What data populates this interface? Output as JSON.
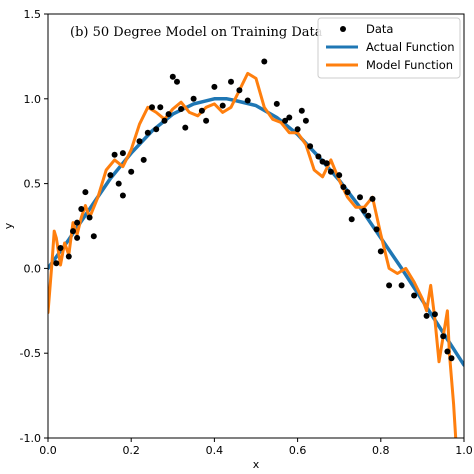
{
  "chart_data": {
    "type": "line",
    "title": "(b) 50 Degree Model on Training Data",
    "xlabel": "x",
    "ylabel": "y",
    "xlim": [
      0.0,
      1.0
    ],
    "ylim": [
      -1.0,
      1.5
    ],
    "x_ticks": [
      "0.0",
      "0.2",
      "0.4",
      "0.6",
      "0.8",
      "1.0"
    ],
    "y_ticks": [
      "-1.0",
      "-0.5",
      "0.0",
      "0.5",
      "1.0",
      "1.5"
    ],
    "grid": false,
    "legend_position": "top-right",
    "legend": [
      "Data",
      "Actual Function",
      "Model Function"
    ],
    "colors": {
      "data": "#000000",
      "actual": "#1f77b4",
      "model": "#ff7f0e"
    },
    "series": [
      {
        "name": "Data",
        "kind": "scatter",
        "x": [
          0.02,
          0.03,
          0.05,
          0.06,
          0.07,
          0.07,
          0.08,
          0.09,
          0.1,
          0.11,
          0.15,
          0.16,
          0.17,
          0.18,
          0.18,
          0.2,
          0.22,
          0.23,
          0.24,
          0.25,
          0.26,
          0.27,
          0.28,
          0.29,
          0.3,
          0.31,
          0.32,
          0.33,
          0.35,
          0.37,
          0.38,
          0.4,
          0.42,
          0.44,
          0.46,
          0.48,
          0.52,
          0.55,
          0.57,
          0.58,
          0.6,
          0.61,
          0.62,
          0.63,
          0.65,
          0.66,
          0.67,
          0.68,
          0.7,
          0.71,
          0.72,
          0.73,
          0.75,
          0.76,
          0.77,
          0.78,
          0.79,
          0.8,
          0.82,
          0.85,
          0.88,
          0.91,
          0.93,
          0.95,
          0.96,
          0.97
        ],
        "y": [
          0.03,
          0.12,
          0.07,
          0.22,
          0.27,
          0.18,
          0.35,
          0.45,
          0.3,
          0.19,
          0.55,
          0.67,
          0.5,
          0.43,
          0.68,
          0.57,
          0.75,
          0.64,
          0.8,
          0.95,
          0.82,
          0.95,
          0.87,
          0.91,
          1.13,
          1.1,
          0.94,
          0.83,
          1.0,
          0.93,
          0.87,
          1.07,
          0.96,
          1.1,
          1.05,
          0.99,
          1.22,
          0.97,
          0.87,
          0.89,
          0.82,
          0.93,
          0.87,
          0.72,
          0.66,
          0.63,
          0.62,
          0.57,
          0.55,
          0.48,
          0.45,
          0.29,
          0.42,
          0.34,
          0.31,
          0.41,
          0.23,
          0.1,
          -0.1,
          -0.1,
          -0.16,
          -0.28,
          -0.27,
          -0.4,
          -0.49,
          -0.53
        ]
      },
      {
        "name": "Actual Function",
        "kind": "line",
        "x": [
          0.0,
          0.05,
          0.1,
          0.15,
          0.2,
          0.25,
          0.3,
          0.35,
          0.4,
          0.43,
          0.45,
          0.5,
          0.55,
          0.6,
          0.65,
          0.7,
          0.75,
          0.8,
          0.85,
          0.9,
          0.95,
          1.0
        ],
        "y": [
          0.0,
          0.17,
          0.35,
          0.53,
          0.68,
          0.81,
          0.91,
          0.97,
          1.0,
          1.0,
          0.99,
          0.96,
          0.89,
          0.79,
          0.66,
          0.52,
          0.36,
          0.18,
          0.0,
          -0.19,
          -0.38,
          -0.57
        ]
      },
      {
        "name": "Model Function",
        "kind": "line",
        "x": [
          0.0,
          0.01,
          0.015,
          0.02,
          0.03,
          0.04,
          0.05,
          0.06,
          0.07,
          0.08,
          0.09,
          0.1,
          0.12,
          0.14,
          0.16,
          0.18,
          0.2,
          0.22,
          0.24,
          0.26,
          0.28,
          0.3,
          0.32,
          0.34,
          0.36,
          0.38,
          0.4,
          0.42,
          0.44,
          0.46,
          0.48,
          0.5,
          0.52,
          0.54,
          0.56,
          0.58,
          0.6,
          0.62,
          0.64,
          0.66,
          0.68,
          0.7,
          0.72,
          0.74,
          0.76,
          0.78,
          0.8,
          0.82,
          0.84,
          0.86,
          0.88,
          0.9,
          0.91,
          0.92,
          0.93,
          0.94,
          0.95,
          0.96,
          0.965,
          0.97,
          0.975,
          0.98
        ],
        "y": [
          -0.26,
          0.05,
          0.22,
          0.18,
          0.02,
          0.15,
          0.08,
          0.27,
          0.2,
          0.3,
          0.37,
          0.3,
          0.42,
          0.58,
          0.64,
          0.6,
          0.7,
          0.85,
          0.95,
          0.92,
          0.88,
          0.94,
          0.98,
          0.92,
          0.9,
          0.95,
          0.97,
          0.92,
          0.95,
          1.05,
          1.15,
          1.12,
          0.95,
          0.88,
          0.86,
          0.8,
          0.8,
          0.73,
          0.58,
          0.54,
          0.64,
          0.52,
          0.42,
          0.36,
          0.36,
          0.42,
          0.2,
          0.0,
          -0.03,
          0.0,
          -0.08,
          -0.18,
          -0.25,
          -0.1,
          -0.3,
          -0.55,
          -0.4,
          -0.25,
          -0.5,
          -0.65,
          -0.8,
          -1.0
        ]
      }
    ]
  }
}
